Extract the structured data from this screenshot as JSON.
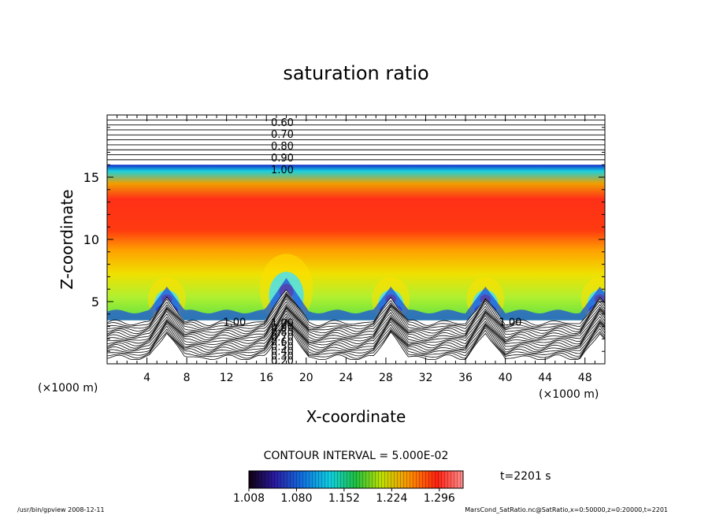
{
  "chart_data": {
    "type": "heatmap",
    "title": "saturation ratio",
    "xlabel": "X-coordinate",
    "ylabel": "Z-coordinate",
    "x_unit_left": "(×1000 m)",
    "x_unit_right": "(×1000 m)",
    "xlim": [
      0,
      50
    ],
    "ylim": [
      0,
      20
    ],
    "x_ticks": [
      4,
      8,
      12,
      16,
      20,
      24,
      28,
      32,
      36,
      40,
      44,
      48
    ],
    "y_ticks": [
      5,
      10,
      15
    ],
    "contour_labels_upper": [
      "0.60",
      "0.70",
      "0.80",
      "0.90",
      "1.00"
    ],
    "contour_labels_lower": [
      "1.00",
      "0.90",
      "0.80",
      "0.70",
      "0.60",
      "0.50",
      "0.40",
      "0.30",
      "0.20"
    ],
    "contour_label_side": [
      "1.00",
      "1.00"
    ],
    "contour_interval": "CONTOUR INTERVAL = 5.000E-02",
    "time_label": "t=2201 s",
    "colorbar_ticks": [
      "1.008",
      "1.080",
      "1.152",
      "1.224",
      "1.296"
    ],
    "colorbar_range": [
      1.008,
      1.332
    ],
    "mountain_peaks_x": [
      6,
      18,
      28.5,
      38,
      49.5
    ],
    "grid": false
  },
  "footer": {
    "left": "/usr/bin/gpview   2008-12-11",
    "right": "MarsCond_SatRatio.nc@SatRatio,x=0:50000,z=0:20000,t=2201"
  }
}
